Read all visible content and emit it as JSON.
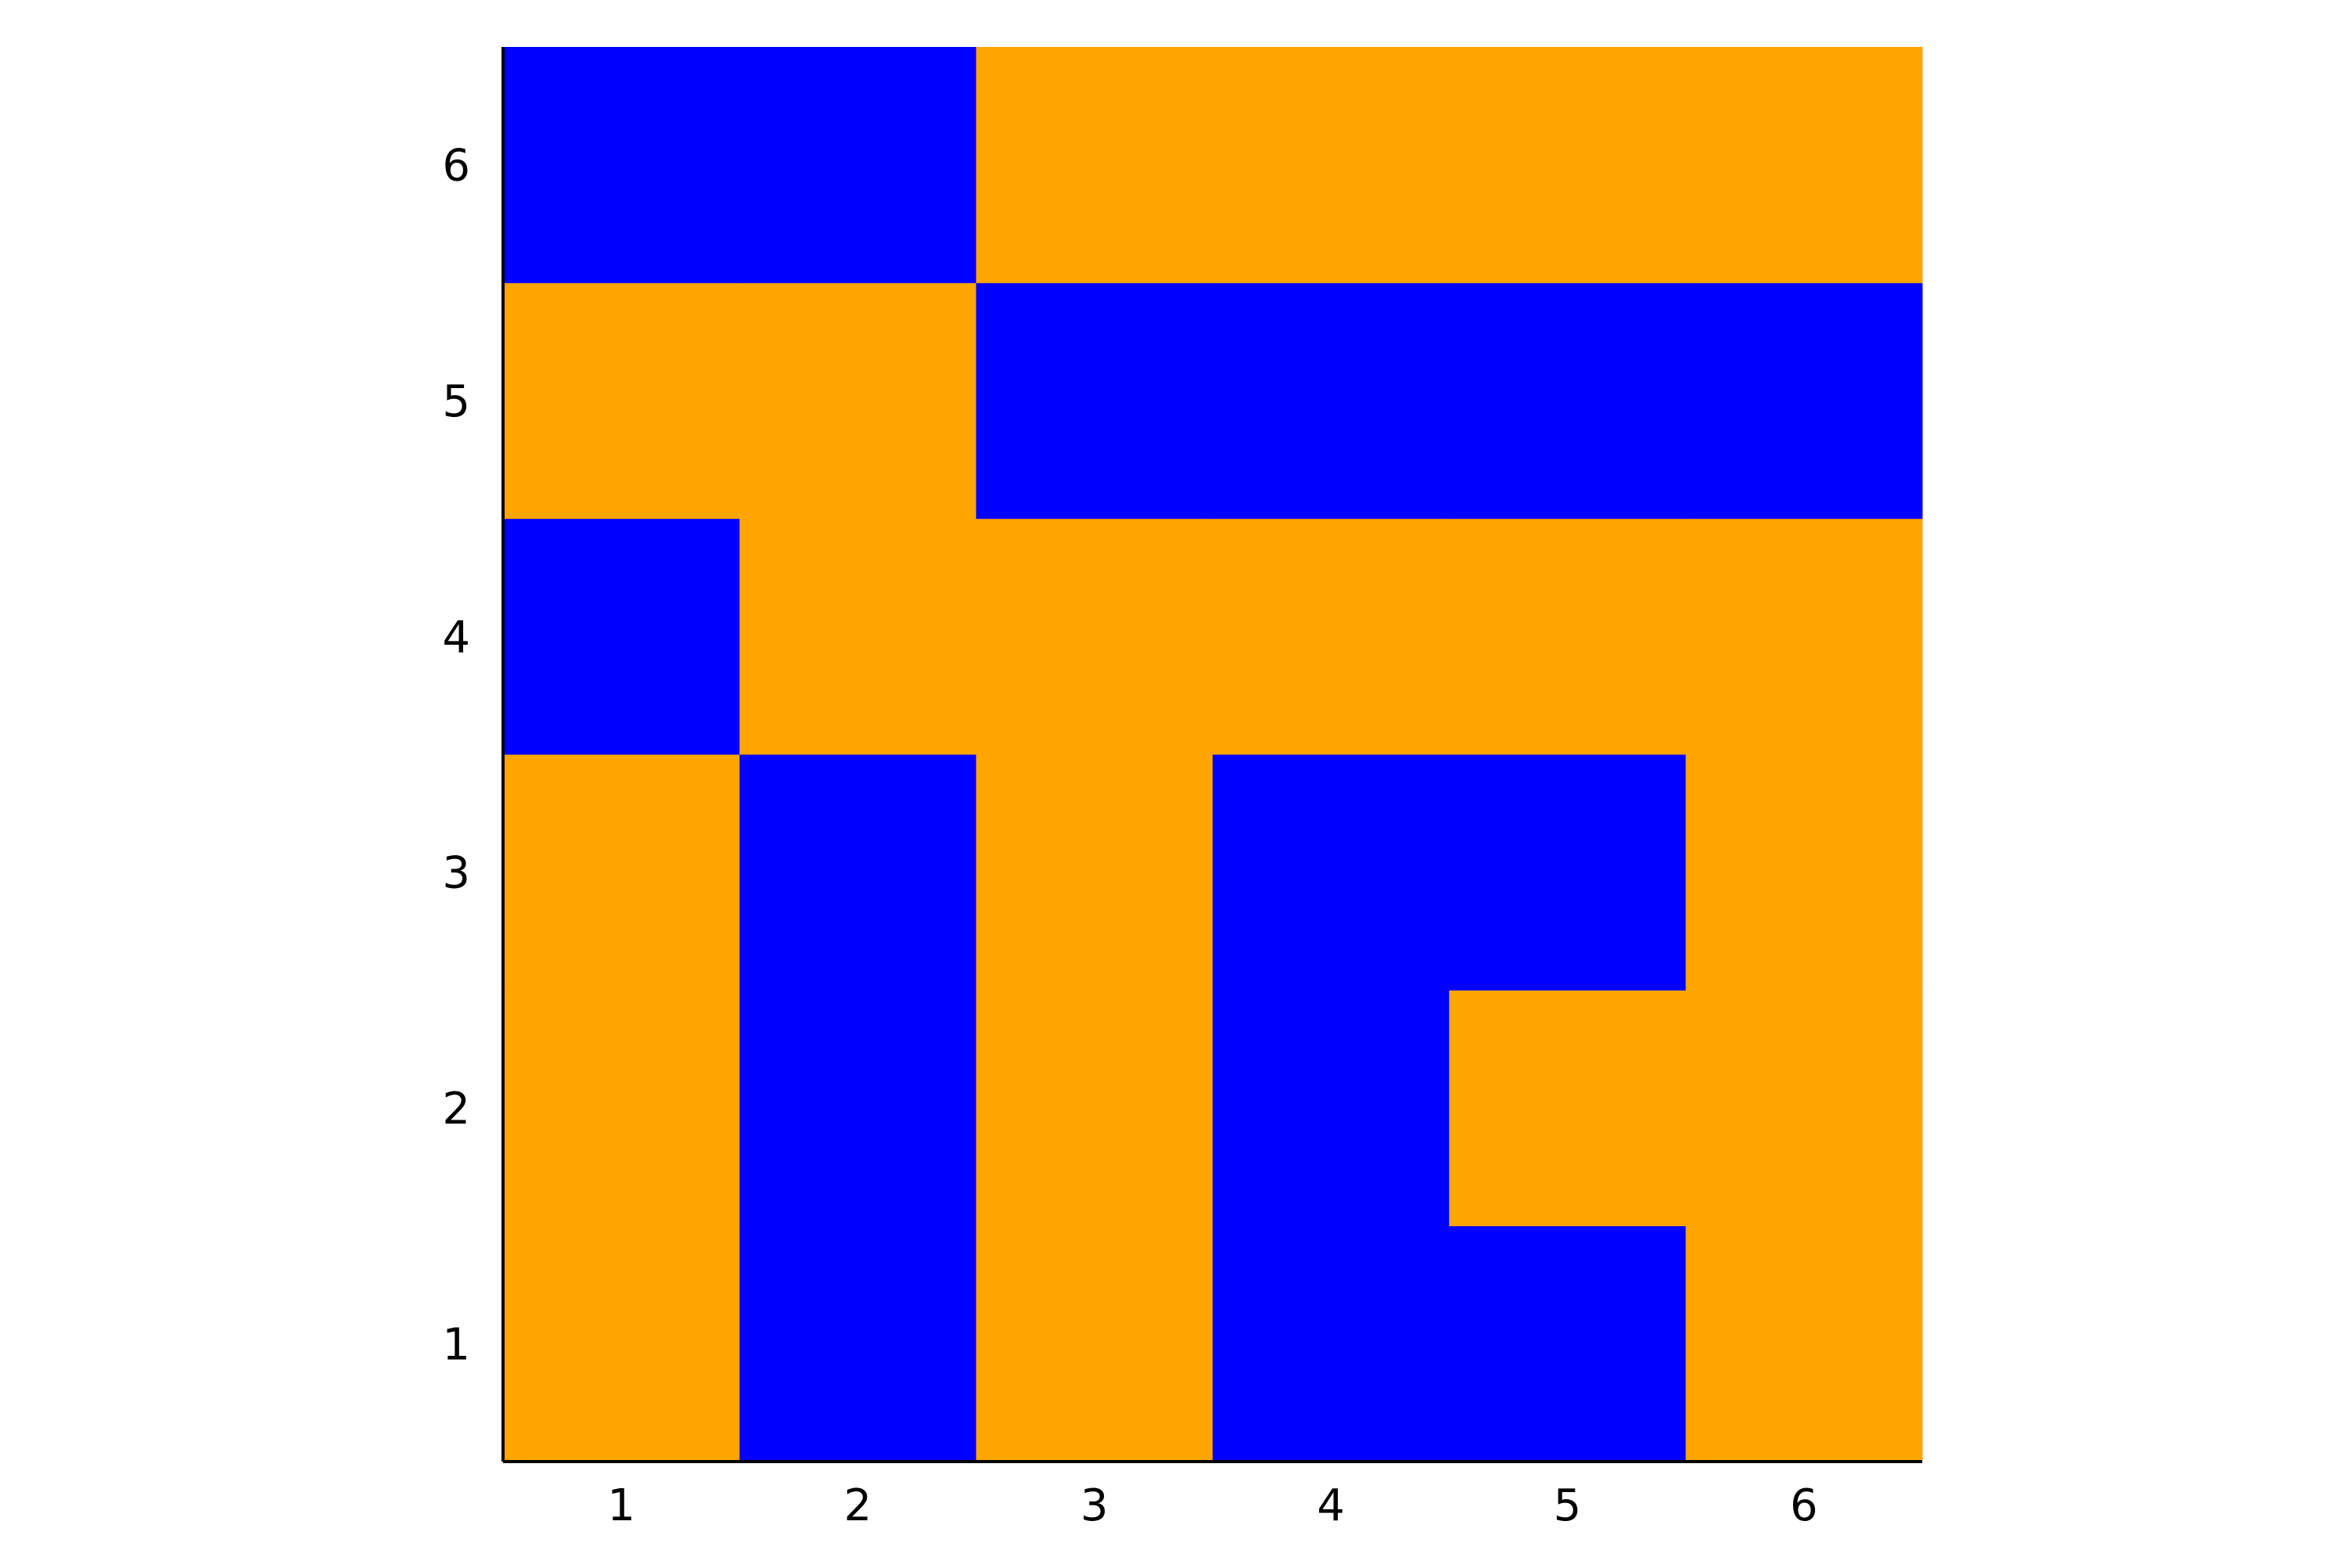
{
  "chart_data": {
    "type": "heatmap",
    "title": "",
    "xlabel": "",
    "ylabel": "",
    "x": [
      1,
      2,
      3,
      4,
      5,
      6
    ],
    "y": [
      1,
      2,
      3,
      4,
      5,
      6
    ],
    "xticks": [
      "1",
      "2",
      "3",
      "4",
      "5",
      "6"
    ],
    "yticks": [
      "1",
      "2",
      "3",
      "4",
      "5",
      "6"
    ],
    "xlim": [
      0.5,
      6.5
    ],
    "ylim": [
      0.5,
      6.5
    ],
    "grid": false,
    "legend": false,
    "colors": {
      "0": "#FFA500",
      "1": "#0000FF"
    },
    "z": [
      [
        0,
        1,
        0,
        1,
        1,
        0
      ],
      [
        0,
        1,
        0,
        1,
        0,
        0
      ],
      [
        0,
        1,
        0,
        1,
        1,
        0
      ],
      [
        1,
        0,
        0,
        0,
        0,
        0
      ],
      [
        0,
        0,
        1,
        1,
        1,
        1
      ],
      [
        1,
        1,
        0,
        0,
        0,
        0
      ]
    ]
  }
}
